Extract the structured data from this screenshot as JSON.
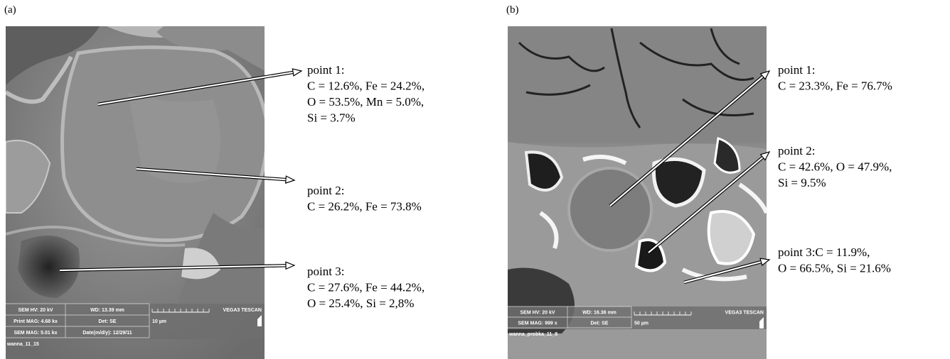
{
  "panels": [
    {
      "label": "(a)",
      "points": [
        {
          "title": "point 1:",
          "lines": [
            "C = 12.6%, Fe = 24.2%,",
            "O = 53.5%, Mn = 5.0%,",
            "Si = 3.7%"
          ]
        },
        {
          "title": "point 2:",
          "lines": [
            "C = 26.2%, Fe = 73.8%"
          ]
        },
        {
          "title": "point 3:",
          "lines": [
            "C = 27.6%, Fe = 44.2%,",
            "O = 25.4%, Si = 2,8%"
          ]
        }
      ],
      "info_bar": [
        [
          "SEM HV: 20 kV",
          "WD: 13.39 mm",
          "VEGA3 TESCAN"
        ],
        [
          "Print MAG: 4.68 kx",
          "Det: SE",
          "10 µm"
        ],
        [
          "SEM MAG: 5.01 kx",
          "Date(m/d/y): 12/29/11"
        ]
      ],
      "file": "wanna_11_15"
    },
    {
      "label": "(b)",
      "points": [
        {
          "title": "point 1:",
          "lines": [
            "C = 23.3%, Fe = 76.7%"
          ]
        },
        {
          "title": "point 2:",
          "lines": [
            "C = 42.6%, O = 47.9%,",
            "Si = 9.5%"
          ]
        },
        {
          "title": "point 3:C = 11.9%,",
          "lines": [
            "O = 66.5%, Si = 21.6%"
          ]
        }
      ],
      "info_bar": [
        [
          "SEM HV: 20 kV",
          "WD: 16.36 mm",
          "VEGA3 TESCAN"
        ],
        [
          "SEM MAG: 999 x",
          "Det: SE",
          "50 µm"
        ]
      ],
      "file": "wanna_probka_11_8"
    }
  ]
}
